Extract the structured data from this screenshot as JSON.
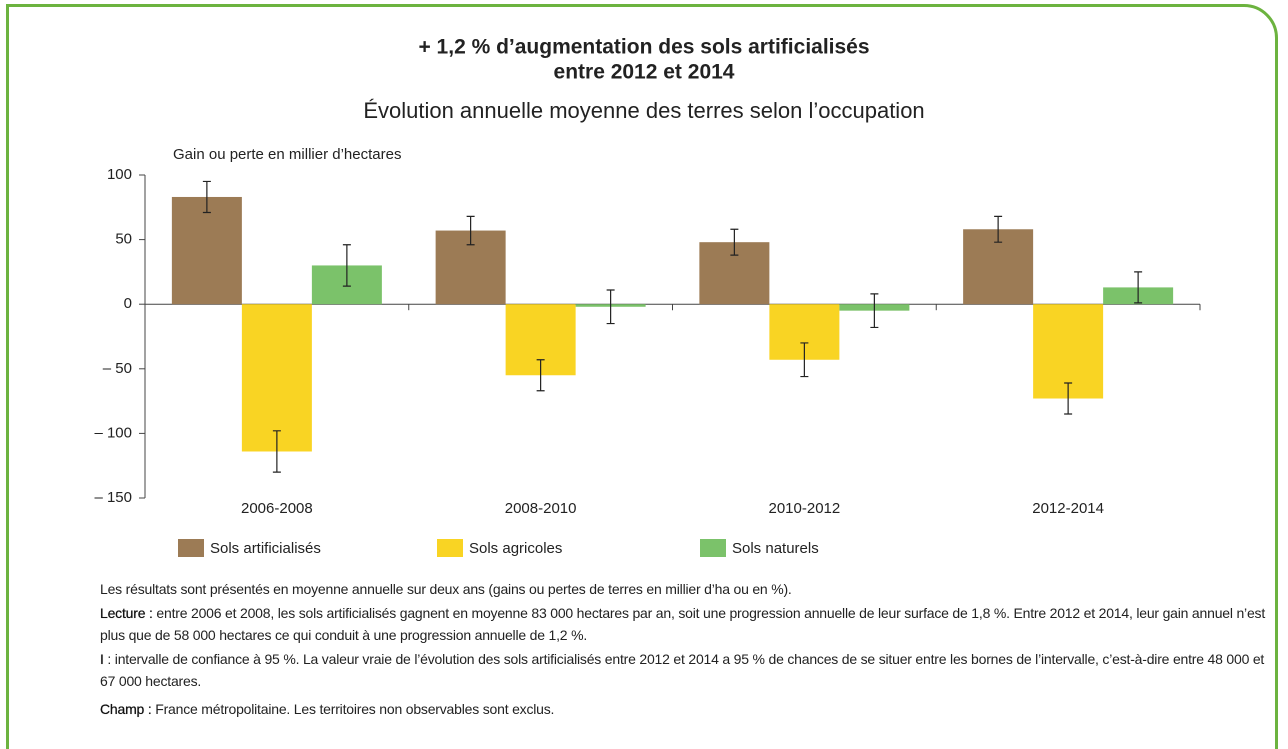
{
  "chart_data": {
    "type": "bar",
    "title": [
      "+ 1,2 % d’augmentation des sols artificialisés",
      "entre 2012 et 2014"
    ],
    "subtitle": "Évolution annuelle moyenne des terres selon l’occupation",
    "y_label": "Gain ou perte en millier d’hectares",
    "categories": [
      "2006-2008",
      "2008-2010",
      "2010-2012",
      "2012-2014"
    ],
    "series": [
      {
        "name": "Sols artificialisés",
        "color": "#9c7b55",
        "values": [
          83,
          57,
          48,
          58
        ],
        "errors": [
          12,
          11,
          10,
          10
        ]
      },
      {
        "name": "Sols agricoles",
        "color": "#f9d423",
        "values": [
          -114,
          -55,
          -43,
          -73
        ],
        "errors": [
          16,
          12,
          13,
          12
        ]
      },
      {
        "name": "Sols naturels",
        "color": "#7bc26a",
        "values": [
          30,
          -2,
          -5,
          13
        ],
        "errors": [
          16,
          13,
          13,
          12
        ]
      }
    ],
    "ylim": [
      -150,
      100
    ],
    "yticks": [
      {
        "value": -150,
        "label": "– 150"
      },
      {
        "value": -100,
        "label": "– 100"
      },
      {
        "value": -50,
        "label": "– 50"
      },
      0,
      50,
      100
    ],
    "grid": false,
    "legend": "bottom"
  },
  "notes": [
    {
      "text": "Les résultats sont présentés en moyenne annuelle sur deux ans (gains ou pertes de terres en millier d’ha ou en %)."
    },
    {
      "label": "Lecture :",
      "text": "entre 2006 et 2008, les sols artificialisés gagnent en moyenne 83 000 hectares par an, soit une progression annuelle de leur surface de 1,8 %. Entre 2012 et 2014, leur gain annuel n’est plus que de 58 000 hectares ce qui conduit à une progression annuelle de 1,2 %."
    },
    {
      "label": "I",
      "text": ": intervalle de confiance à 95 %. La valeur vraie de l’évolution des sols artificialisés entre 2012 et 2014 a 95 % de chances de se situer entre les bornes de l’intervalle, c’est-à-dire entre 48 000 et 67 000 hectares."
    },
    {
      "label": "Champ :",
      "text": "France métropolitaine. Les territoires non observables sont exclus."
    }
  ]
}
